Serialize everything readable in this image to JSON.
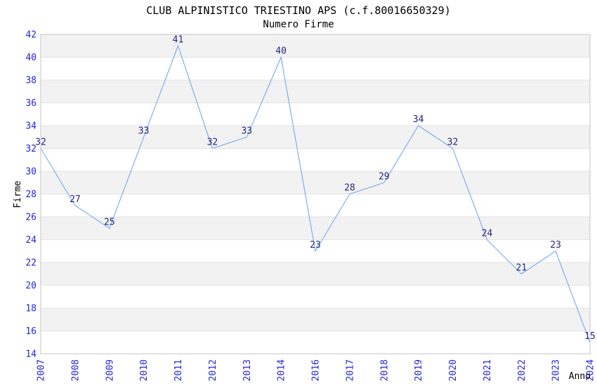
{
  "header": {
    "title": "CLUB ALPINISTICO TRIESTINO APS (c.f.80016650329)",
    "subtitle": "Numero Firme"
  },
  "chart_data": {
    "type": "line",
    "title": "CLUB ALPINISTICO TRIESTINO APS (c.f.80016650329)",
    "subtitle": "Numero Firme",
    "xlabel": "Anno",
    "ylabel": "Firme",
    "categories": [
      "2007",
      "2008",
      "2009",
      "2010",
      "2011",
      "2012",
      "2013",
      "2014",
      "2016",
      "2017",
      "2018",
      "2019",
      "2020",
      "2021",
      "2022",
      "2023",
      "2024"
    ],
    "values": [
      32,
      27,
      25,
      33,
      41,
      32,
      33,
      40,
      23,
      28,
      29,
      34,
      32,
      24,
      21,
      23,
      15
    ],
    "ylim": [
      14,
      42
    ],
    "ytick_step": 2,
    "grid": true,
    "legend": "none",
    "band_pattern": "alternating-2-unit-horizontal-bands",
    "colors": {
      "line": "#7db0ee",
      "tick_labels": "#2424d8",
      "data_labels": "#262680",
      "band": "#f2f2f2",
      "gridline": "#e3e3e3",
      "border": "#c6c6c6",
      "text": "#000000",
      "background": "#ffffff"
    }
  }
}
